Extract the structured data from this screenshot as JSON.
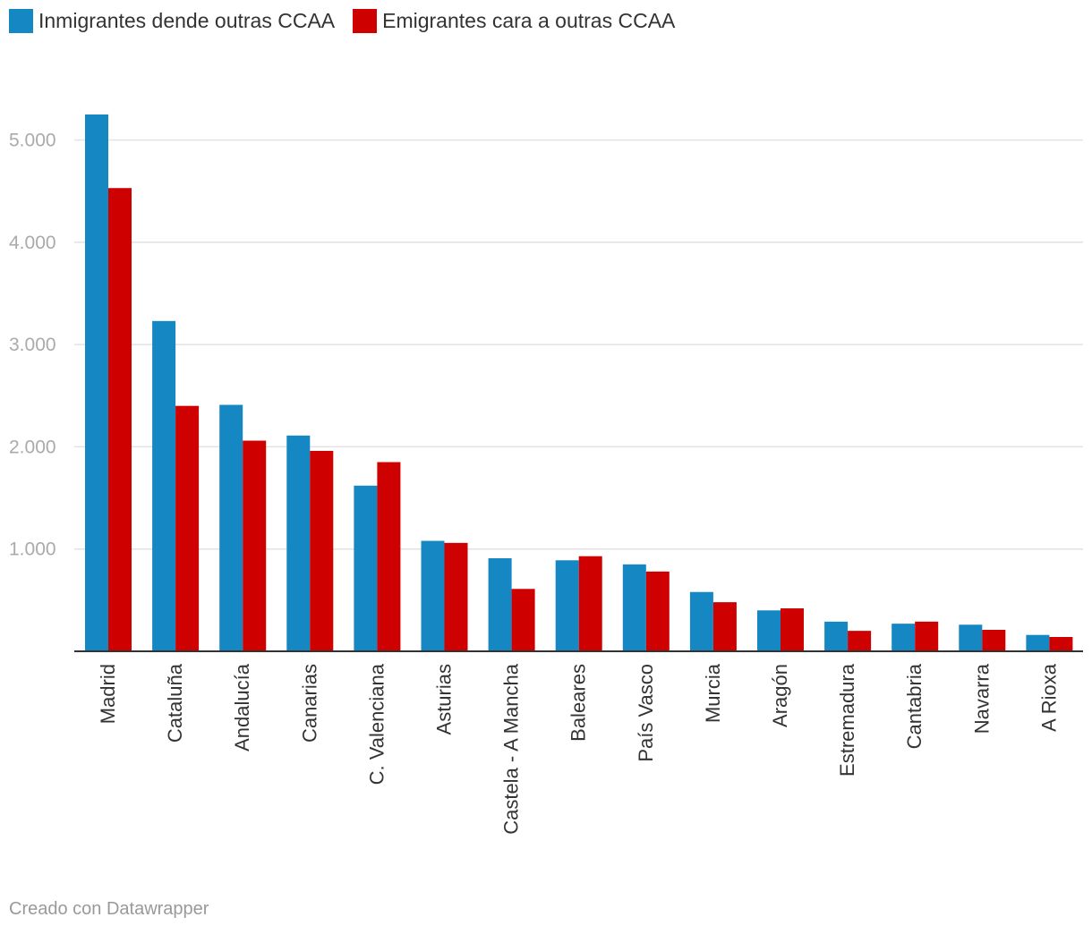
{
  "chart_data": {
    "type": "bar",
    "title": "",
    "xlabel": "",
    "ylabel": "",
    "ylim": [
      0,
      5300
    ],
    "yticks": [
      1000,
      2000,
      3000,
      4000,
      5000
    ],
    "ytick_labels": [
      "1.000",
      "2.000",
      "3.000",
      "4.000",
      "5.000"
    ],
    "grid": true,
    "legend_position": "top-left",
    "categories": [
      "Madrid",
      "Cataluña",
      "Andalucía",
      "Canarias",
      "C. Valenciana",
      "Asturias",
      "Castela - A Mancha",
      "Baleares",
      "País Vasco",
      "Murcia",
      "Aragón",
      "Estremadura",
      "Cantabria",
      "Navarra",
      "A Rioxa"
    ],
    "series": [
      {
        "name": "Inmigrantes dende outras CCAA",
        "color": "#1587c3",
        "values": [
          5250,
          3230,
          2410,
          2110,
          1620,
          1080,
          910,
          890,
          850,
          580,
          400,
          290,
          270,
          260,
          160
        ]
      },
      {
        "name": "Emigrantes cara a outras CCAA",
        "color": "#cf0000",
        "values": [
          4530,
          2400,
          2060,
          1960,
          1850,
          1060,
          610,
          930,
          780,
          480,
          420,
          200,
          290,
          210,
          140
        ]
      }
    ]
  },
  "footer": "Creado con Datawrapper"
}
